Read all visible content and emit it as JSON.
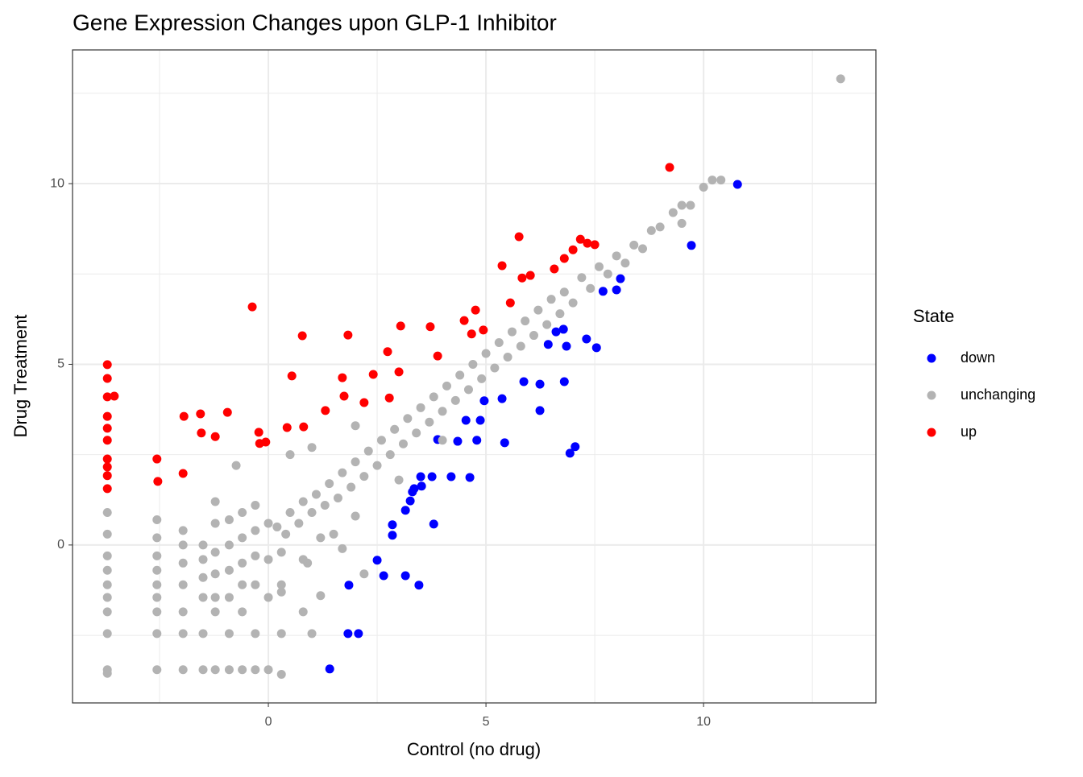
{
  "chart_data": {
    "type": "scatter",
    "title": "Gene Expression Changes upon GLP-1 Inhibitor",
    "x_label": "Control (no drug)",
    "y_label": "Drug Treatment",
    "legend_title": "State",
    "legend_position": "right",
    "grid": true,
    "xlim": [
      -4.5,
      13.96
    ],
    "ylim": [
      -4.37,
      13.7
    ],
    "xticks": [
      0,
      5,
      10
    ],
    "yticks": [
      0,
      5,
      10
    ],
    "xminor": [
      -2.5,
      2.5,
      7.5,
      12.5
    ],
    "yminor": [
      -2.5,
      2.5,
      7.5,
      12.5
    ],
    "series": [
      {
        "name": "down",
        "color": "#0000ff",
        "x": [
          10.78,
          9.72,
          8.09,
          8.0,
          7.69,
          7.54,
          7.31,
          6.78,
          6.85,
          6.61,
          6.43,
          6.8,
          6.24,
          7.05,
          6.93,
          6.24,
          5.87,
          5.37,
          4.96,
          4.87,
          4.79,
          5.43,
          4.54,
          4.35,
          4.63,
          4.2,
          3.89,
          3.76,
          3.8,
          3.5,
          3.52,
          3.35,
          3.26,
          3.31,
          3.15,
          2.85,
          2.85,
          2.5,
          2.65,
          3.15,
          3.46,
          1.85,
          1.83,
          2.07,
          1.41
        ],
        "values": [
          9.98,
          8.29,
          7.37,
          7.06,
          7.02,
          5.46,
          5.7,
          5.97,
          5.5,
          5.9,
          5.55,
          4.52,
          4.45,
          2.72,
          2.54,
          3.72,
          4.52,
          4.05,
          3.99,
          3.45,
          2.9,
          2.83,
          3.45,
          2.87,
          1.87,
          1.89,
          2.92,
          1.89,
          0.58,
          1.89,
          1.63,
          1.56,
          1.22,
          1.47,
          0.96,
          0.56,
          0.27,
          -0.42,
          -0.85,
          -0.85,
          -1.11,
          -1.11,
          -2.45,
          -2.45,
          -3.43
        ]
      },
      {
        "name": "unchanging",
        "color": "#b3b3b3",
        "x": [
          0.2,
          0.4,
          0.5,
          0.7,
          0.8,
          1.0,
          1.1,
          1.3,
          1.4,
          1.6,
          1.7,
          1.9,
          2.0,
          2.2,
          2.3,
          2.5,
          2.6,
          2.8,
          2.9,
          3.1,
          3.2,
          3.4,
          3.5,
          3.7,
          3.8,
          4.0,
          4.1,
          4.3,
          4.4,
          4.6,
          4.7,
          4.9,
          5.0,
          5.2,
          5.3,
          5.5,
          5.6,
          5.8,
          5.9,
          6.1,
          6.2,
          6.4,
          6.5,
          6.7,
          6.8,
          7.0,
          7.2,
          7.4,
          7.6,
          7.8,
          8.0,
          8.2,
          8.4,
          8.6,
          8.8,
          9.0,
          9.3,
          9.5,
          9.7,
          9.5,
          10.0,
          10.2,
          10.4,
          13.15,
          1.2,
          0.9,
          1.5,
          2.0,
          3.0,
          4.0,
          0.5,
          1.0,
          2.0,
          -0.74,
          1.7,
          2.2,
          1.2,
          0.3,
          -3.7,
          -3.7,
          -3.7,
          -3.7,
          -3.7,
          -3.7,
          -3.7,
          -3.7,
          -3.7,
          -3.7,
          -2.56,
          -2.56,
          -2.56,
          -2.56,
          -2.56,
          -2.56,
          -2.56,
          -2.56,
          -2.56,
          -1.96,
          -1.96,
          -1.96,
          -1.96,
          -1.96,
          -1.96,
          -1.96,
          -1.5,
          -1.5,
          -1.5,
          -1.5,
          -1.5,
          -1.5,
          -1.22,
          -1.22,
          -1.22,
          -1.22,
          -1.22,
          -1.22,
          -1.22,
          -0.9,
          -0.9,
          -0.9,
          -0.9,
          -0.9,
          -0.9,
          -0.6,
          -0.6,
          -0.6,
          -0.6,
          -0.6,
          -0.6,
          -0.3,
          -0.3,
          -0.3,
          -0.3,
          -0.3,
          -0.3,
          0.0,
          0.0,
          0.0,
          0.0,
          0.3,
          0.3,
          0.3,
          0.3,
          0.8,
          0.8,
          1.0
        ],
        "values": [
          0.5,
          0.3,
          0.9,
          0.6,
          1.2,
          0.9,
          1.4,
          1.1,
          1.7,
          1.3,
          2.0,
          1.6,
          2.3,
          1.9,
          2.6,
          2.2,
          2.9,
          2.5,
          3.2,
          2.8,
          3.5,
          3.1,
          3.8,
          3.4,
          4.1,
          3.7,
          4.4,
          4.0,
          4.7,
          4.3,
          5.0,
          4.6,
          5.3,
          4.9,
          5.6,
          5.2,
          5.9,
          5.5,
          6.2,
          5.8,
          6.5,
          6.1,
          6.8,
          6.4,
          7.0,
          6.7,
          7.4,
          7.1,
          7.7,
          7.5,
          8.0,
          7.8,
          8.3,
          8.2,
          8.7,
          8.8,
          9.2,
          9.4,
          9.4,
          8.9,
          9.9,
          10.1,
          10.1,
          12.9,
          0.2,
          -0.5,
          0.3,
          0.8,
          1.8,
          2.9,
          2.5,
          2.7,
          3.3,
          2.2,
          -0.1,
          -0.8,
          -1.4,
          -1.3,
          0.9,
          0.3,
          -0.3,
          -0.7,
          -1.1,
          -1.45,
          -1.85,
          -2.45,
          -3.45,
          -3.55,
          0.7,
          0.2,
          -0.3,
          -0.7,
          -1.1,
          -1.45,
          -1.85,
          -2.45,
          -3.45,
          0.4,
          0.0,
          -0.5,
          -1.1,
          -1.85,
          -2.45,
          -3.45,
          0.0,
          -0.4,
          -0.9,
          -1.45,
          -2.45,
          -3.45,
          1.2,
          0.6,
          -0.2,
          -0.8,
          -1.45,
          -1.85,
          -3.45,
          0.7,
          0.0,
          -0.7,
          -1.45,
          -2.45,
          -3.45,
          0.9,
          0.2,
          -0.5,
          -1.1,
          -1.85,
          -3.45,
          1.1,
          0.4,
          -0.3,
          -1.1,
          -2.45,
          -3.45,
          0.6,
          -0.4,
          -1.45,
          -3.45,
          -0.2,
          -1.1,
          -2.45,
          -3.58,
          -0.4,
          -1.85,
          -2.45
        ]
      },
      {
        "name": "up",
        "color": "#ff0000",
        "x": [
          9.22,
          5.76,
          7.17,
          7.5,
          7.33,
          7.0,
          6.8,
          6.57,
          6.02,
          5.83,
          5.37,
          -0.37,
          5.56,
          4.76,
          4.5,
          3.04,
          3.72,
          0.78,
          1.83,
          4.94,
          4.67,
          2.74,
          3.89,
          0.54,
          1.7,
          2.41,
          3.0,
          1.31,
          1.74,
          2.2,
          2.78,
          0.43,
          0.81,
          -0.22,
          -0.2,
          -0.06,
          -1.94,
          -1.56,
          -0.94,
          -1.54,
          -1.22,
          -2.56,
          -2.54,
          -1.96,
          -3.7,
          -3.7,
          -3.7,
          -3.54,
          -3.7,
          -3.7,
          -3.7,
          -3.7,
          -3.7,
          -3.7,
          -3.7
        ],
        "values": [
          10.45,
          8.53,
          8.46,
          8.31,
          8.35,
          8.17,
          7.93,
          7.64,
          7.46,
          7.39,
          7.73,
          6.59,
          6.7,
          6.5,
          6.21,
          6.06,
          6.04,
          5.79,
          5.81,
          5.95,
          5.84,
          5.35,
          5.23,
          4.68,
          4.63,
          4.72,
          4.79,
          3.72,
          4.12,
          3.94,
          4.07,
          3.25,
          3.27,
          3.12,
          2.81,
          2.85,
          3.56,
          3.63,
          3.67,
          3.1,
          3.0,
          2.38,
          1.76,
          1.98,
          4.99,
          4.61,
          4.1,
          4.12,
          3.56,
          3.23,
          2.9,
          2.38,
          2.16,
          1.92,
          1.56
        ]
      }
    ]
  }
}
